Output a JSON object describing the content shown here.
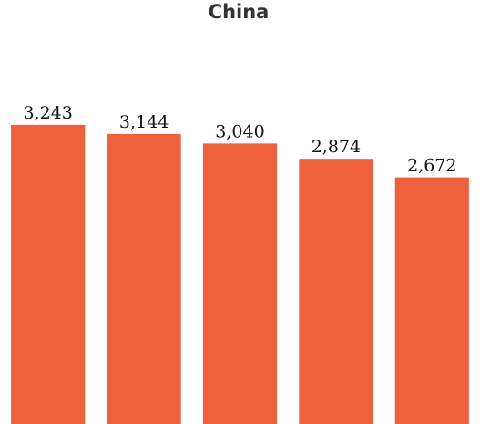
{
  "chart_data": {
    "type": "bar",
    "title": "China",
    "values": [
      3243,
      3144,
      3040,
      2874,
      2672
    ],
    "value_labels": [
      "3,243",
      "3,144",
      "3,040",
      "2,874",
      "2,672"
    ],
    "color": "#ef603d",
    "ylim": [
      0,
      4200
    ]
  }
}
